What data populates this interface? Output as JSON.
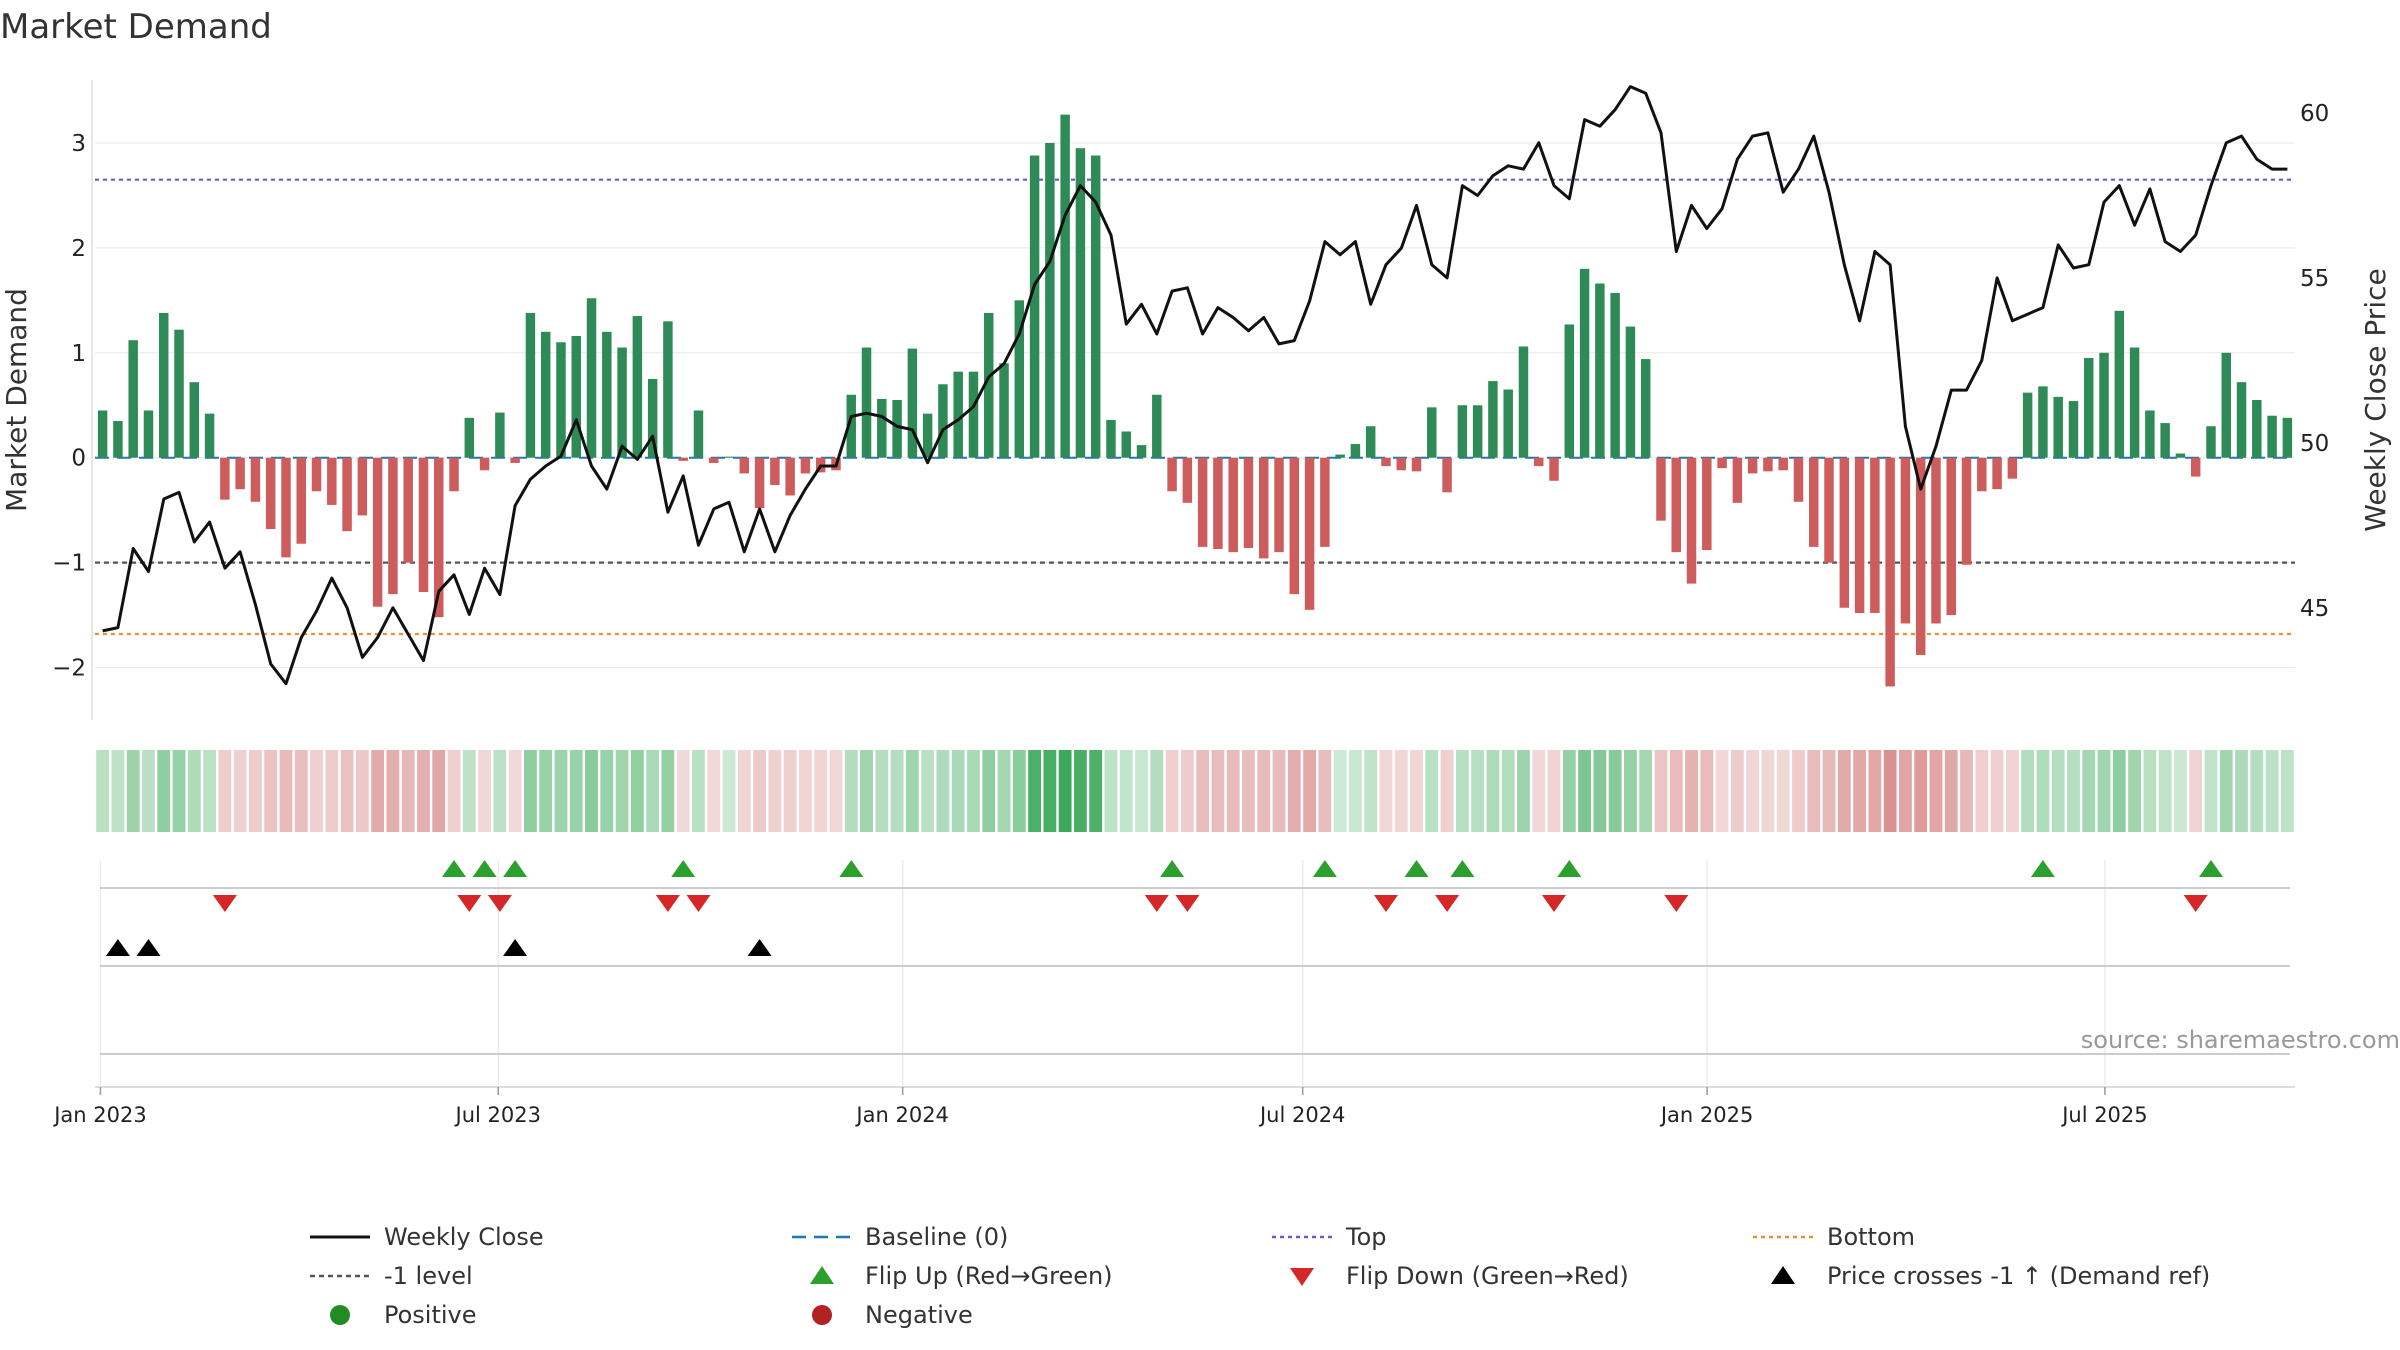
{
  "chart_data": {
    "type": "bar",
    "title": "Market Demand",
    "ylabel_left": "Market Demand",
    "ylabel_right": "Weekly Close Price",
    "source": "source: sharemaestro.com",
    "ylim_left": [
      -2.5,
      3.6
    ],
    "ylim_right": [
      41.6,
      61
    ],
    "yticks_left": [
      "3",
      "2",
      "1",
      "0",
      "−1",
      "−2"
    ],
    "yticks_left_values": [
      3,
      2,
      1,
      0,
      -1,
      -2
    ],
    "yticks_right": [
      "60",
      "55",
      "50",
      "45"
    ],
    "yticks_right_values": [
      60,
      55,
      50,
      45
    ],
    "x_start": "2023-01-02",
    "x_end": "2025-09-22",
    "x_ticks": [
      {
        "label": "Jan 2023",
        "date": "2023-01-01"
      },
      {
        "label": "Jul 2023",
        "date": "2023-07-01"
      },
      {
        "label": "Jan 2024",
        "date": "2024-01-01"
      },
      {
        "label": "Jul 2024",
        "date": "2024-07-01"
      },
      {
        "label": "Jan 2025",
        "date": "2025-01-01"
      },
      {
        "label": "Jul 2025",
        "date": "2025-07-01"
      }
    ],
    "reference_lines": {
      "top": 2.65,
      "bottom": -1.68,
      "minus_one": -1,
      "baseline": 0
    },
    "colors": {
      "positive": "#2e8b57",
      "negative": "#cd5c5c",
      "close": "#111111",
      "top": "#6a5acd",
      "bottom": "#e8912d",
      "minus_one": "#555555",
      "baseline": "#1f77b4",
      "flip_up": "#2ca02c",
      "flip_down": "#d62728",
      "cross": "#000000",
      "positive_dot": "#228b22",
      "negative_dot": "#b22222"
    },
    "demand": [
      0.45,
      0.35,
      1.12,
      0.45,
      1.38,
      1.22,
      0.72,
      0.42,
      -0.4,
      -0.3,
      -0.42,
      -0.68,
      -0.95,
      -0.82,
      -0.32,
      -0.45,
      -0.7,
      -0.55,
      -1.42,
      -1.3,
      -1.0,
      -1.28,
      -1.52,
      -0.32,
      0.38,
      -0.12,
      0.43,
      -0.05,
      1.38,
      1.2,
      1.1,
      1.16,
      1.52,
      1.2,
      1.05,
      1.35,
      0.75,
      1.3,
      -0.03,
      0.45,
      -0.05,
      0.01,
      -0.15,
      -0.48,
      -0.26,
      -0.36,
      -0.15,
      -0.14,
      -0.12,
      0.6,
      1.05,
      0.56,
      0.55,
      1.04,
      0.42,
      0.7,
      0.82,
      0.82,
      1.38,
      0.9,
      1.5,
      2.88,
      3.0,
      3.27,
      2.95,
      2.88,
      0.36,
      0.25,
      0.12,
      0.6,
      -0.32,
      -0.43,
      -0.85,
      -0.87,
      -0.9,
      -0.86,
      -0.96,
      -0.9,
      -1.3,
      -1.45,
      -0.85,
      0.03,
      0.13,
      0.3,
      -0.08,
      -0.12,
      -0.13,
      0.48,
      -0.33,
      0.5,
      0.5,
      0.73,
      0.65,
      1.06,
      -0.08,
      -0.22,
      1.27,
      1.8,
      1.66,
      1.57,
      1.25,
      0.94,
      -0.6,
      -0.9,
      -1.2,
      -0.88,
      -0.1,
      -0.43,
      -0.15,
      -0.13,
      -0.12,
      -0.42,
      -0.85,
      -1.0,
      -1.43,
      -1.48,
      -1.48,
      -2.18,
      -1.58,
      -1.88,
      -1.58,
      -1.5,
      -1.02,
      -0.32,
      -0.3,
      -0.2,
      0.62,
      0.68,
      0.58,
      0.54,
      0.95,
      1.0,
      1.4,
      1.05,
      0.45,
      0.33,
      0.04,
      -0.18,
      0.3,
      1.0,
      0.72,
      0.55,
      0.4,
      0.38
    ],
    "close": [
      44.3,
      44.4,
      46.8,
      46.1,
      48.3,
      48.5,
      47.0,
      47.6,
      46.2,
      46.7,
      45.1,
      43.3,
      42.7,
      44.1,
      44.9,
      45.9,
      45.0,
      43.5,
      44.1,
      45.0,
      44.2,
      43.4,
      45.5,
      46.0,
      44.8,
      46.2,
      45.4,
      48.1,
      48.9,
      49.3,
      49.6,
      50.7,
      49.3,
      48.6,
      49.9,
      49.5,
      50.2,
      47.9,
      49.0,
      46.9,
      48.0,
      48.2,
      46.7,
      48.0,
      46.7,
      47.8,
      48.6,
      49.3,
      49.3,
      50.8,
      50.9,
      50.8,
      50.5,
      50.4,
      49.4,
      50.4,
      50.7,
      51.1,
      52.0,
      52.4,
      53.3,
      54.8,
      55.5,
      56.9,
      57.8,
      57.3,
      56.3,
      53.6,
      54.2,
      53.3,
      54.6,
      54.7,
      53.3,
      54.1,
      53.8,
      53.4,
      53.8,
      53.0,
      53.1,
      54.3,
      56.1,
      55.7,
      56.1,
      54.2,
      55.4,
      55.9,
      57.2,
      55.4,
      55.0,
      57.8,
      57.5,
      58.1,
      58.4,
      58.3,
      59.1,
      57.8,
      57.4,
      59.8,
      59.6,
      60.1,
      60.8,
      60.6,
      59.4,
      55.8,
      57.2,
      56.5,
      57.1,
      58.6,
      59.3,
      59.4,
      57.6,
      58.3,
      59.3,
      57.6,
      55.4,
      53.7,
      55.8,
      55.4,
      50.5,
      48.6,
      49.9,
      51.6,
      51.6,
      52.5,
      55.0,
      53.7,
      53.9,
      54.1,
      56.0,
      55.3,
      55.4,
      57.3,
      57.8,
      56.6,
      57.7,
      56.1,
      55.8,
      56.3,
      57.8,
      59.1,
      59.3,
      58.6,
      58.3,
      58.3
    ],
    "flip_up": [
      23,
      25,
      27,
      38,
      49,
      70,
      80,
      86,
      89,
      96,
      127,
      138
    ],
    "flip_down": [
      8,
      24,
      26,
      37,
      39,
      69,
      71,
      84,
      88,
      95,
      103,
      137
    ],
    "price_cross": [
      1,
      3,
      27,
      43
    ],
    "legend": [
      {
        "label": "Weekly Close",
        "marker": "solid-line"
      },
      {
        "label": "Baseline (0)",
        "marker": "dashed-line"
      },
      {
        "label": "Top",
        "marker": "dotted-line"
      },
      {
        "label": "Bottom",
        "marker": "dotted-line"
      },
      {
        "label": "-1 level",
        "marker": "dotted-line"
      },
      {
        "label": "Flip Up (Red→Green)",
        "marker": "up-triangle"
      },
      {
        "label": "Flip Down (Green→Red)",
        "marker": "down-triangle"
      },
      {
        "label": "Price crosses -1 ↑ (Demand ref)",
        "marker": "up-triangle"
      },
      {
        "label": "Positive",
        "marker": "dot"
      },
      {
        "label": "Negative",
        "marker": "dot"
      }
    ]
  }
}
